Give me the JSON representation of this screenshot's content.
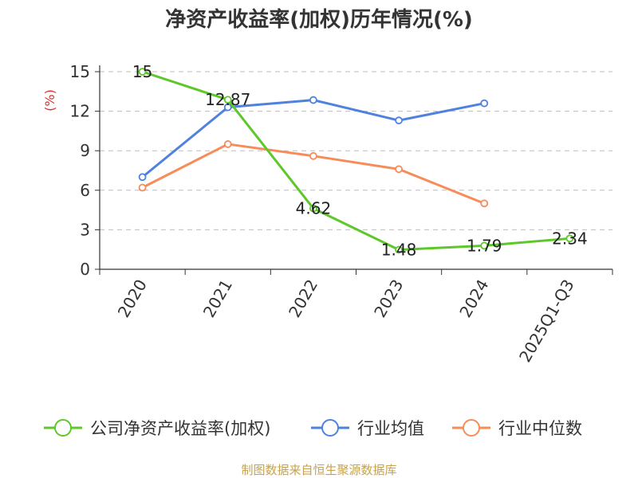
{
  "chart_data": {
    "type": "line",
    "title": "净资产收益率(加权)历年情况(%)",
    "ylabel": "(%)",
    "categories": [
      "2020",
      "2021",
      "2022",
      "2023",
      "2024",
      "2025Q1-Q3"
    ],
    "ylim": [
      0,
      15
    ],
    "yticks": [
      0,
      3,
      6,
      9,
      12,
      15
    ],
    "grid": true,
    "series": [
      {
        "name": "公司净资产收益率(加权)",
        "color": "#5ec72a",
        "values": [
          15,
          12.87,
          4.62,
          1.48,
          1.79,
          2.34
        ],
        "show_labels": true
      },
      {
        "name": "行业均值",
        "color": "#4f82de",
        "values": [
          7.0,
          12.3,
          12.85,
          11.3,
          12.6,
          null
        ],
        "show_labels": false
      },
      {
        "name": "行业中位数",
        "color": "#f78c5a",
        "values": [
          6.2,
          9.5,
          8.6,
          7.6,
          5.0,
          null
        ],
        "show_labels": false
      }
    ],
    "data_labels": [
      "15",
      "12.87",
      "4.62",
      "1.48",
      "1.79",
      "2.34"
    ],
    "legend_position": "bottom"
  },
  "footer": {
    "source": "制图数据来自恒生聚源数据库"
  }
}
